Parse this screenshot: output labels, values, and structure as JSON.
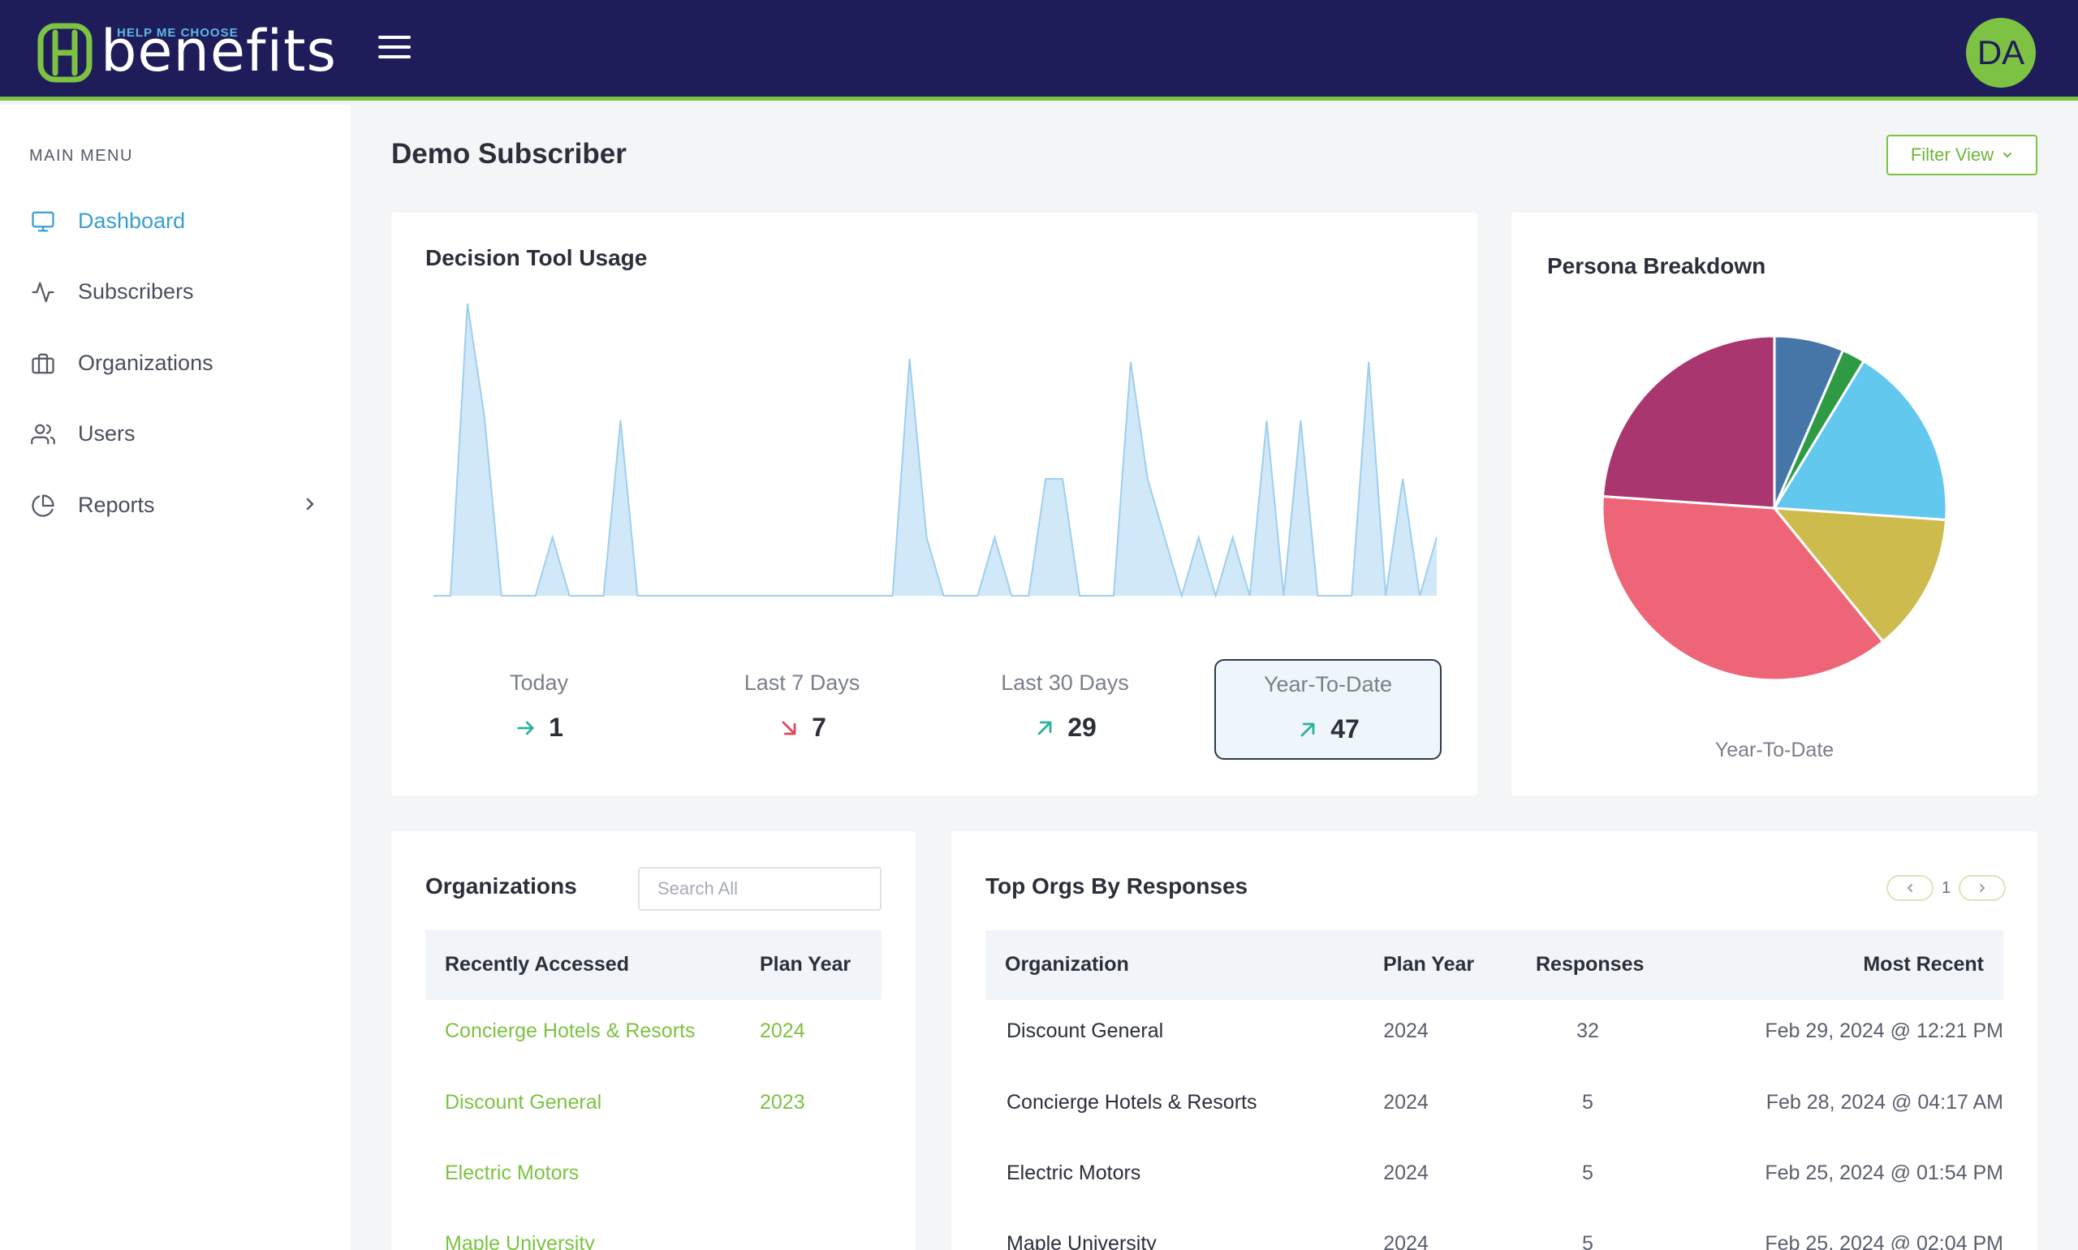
{
  "header": {
    "logo_tagline": "HELP ME CHOOSE",
    "logo_word": "benefits",
    "avatar_initials": "DA",
    "brand_color": "#1e1d5a",
    "accent_color": "#7dc242"
  },
  "sidebar": {
    "heading": "MAIN MENU",
    "items": [
      {
        "label": "Dashboard",
        "icon": "monitor-icon",
        "active": true
      },
      {
        "label": "Subscribers",
        "icon": "activity-icon"
      },
      {
        "label": "Organizations",
        "icon": "briefcase-icon"
      },
      {
        "label": "Users",
        "icon": "users-icon"
      },
      {
        "label": "Reports",
        "icon": "pie-chart-icon",
        "has_submenu": true
      }
    ]
  },
  "main": {
    "title": "Demo Subscriber",
    "filter_label": "Filter View"
  },
  "usage": {
    "title": "Decision Tool Usage",
    "stats": [
      {
        "label": "Today",
        "value": "1",
        "trend": "flat"
      },
      {
        "label": "Last 7 Days",
        "value": "7",
        "trend": "down"
      },
      {
        "label": "Last 30 Days",
        "value": "29",
        "trend": "up"
      },
      {
        "label": "Year-To-Date",
        "value": "47",
        "trend": "up",
        "selected": true
      }
    ]
  },
  "persona": {
    "title": "Persona Breakdown",
    "caption": "Year-To-Date"
  },
  "chart_data": [
    {
      "type": "area",
      "title": "Decision Tool Usage",
      "xlabel": "",
      "ylabel": "",
      "grid": false,
      "ylim": [
        0,
        9
      ],
      "x": [
        0,
        1,
        2,
        3,
        4,
        5,
        6,
        7,
        8,
        9,
        10,
        11,
        12,
        13,
        14,
        15,
        16,
        17,
        18,
        19,
        20,
        21,
        22,
        23,
        24,
        25,
        26,
        27,
        28,
        29,
        30,
        31,
        32,
        33,
        34,
        35,
        36,
        37,
        38,
        39,
        40,
        41,
        42,
        43,
        44,
        45,
        46,
        47,
        48,
        49,
        50,
        51,
        52,
        53,
        54,
        55,
        56,
        57,
        58,
        59
      ],
      "values": [
        0,
        0,
        9,
        5.5,
        0,
        0,
        0,
        1.8,
        0,
        0,
        0,
        5.4,
        0,
        0,
        0,
        0,
        0,
        0,
        0,
        0,
        0,
        0,
        0,
        0,
        0,
        0,
        0,
        0,
        7.3,
        1.8,
        0,
        0,
        0,
        1.8,
        0,
        0,
        3.6,
        3.6,
        0,
        0,
        0,
        7.2,
        3.6,
        1.8,
        0,
        1.8,
        0,
        1.8,
        0,
        5.4,
        0,
        5.4,
        0,
        0,
        0,
        7.2,
        0,
        3.6,
        0,
        1.8
      ],
      "color": "#9fcfee"
    },
    {
      "type": "pie",
      "title": "Persona Breakdown",
      "values": [
        3,
        1,
        8,
        6,
        17,
        11
      ],
      "colors": [
        "#4676a8",
        "#2e9a44",
        "#62c8ee",
        "#cdbb4e",
        "#ee6577",
        "#aa3670"
      ],
      "legend": "none"
    }
  ],
  "orgs": {
    "title": "Organizations",
    "search_placeholder": "Search All",
    "columns": [
      "Recently Accessed",
      "Plan Year"
    ],
    "rows": [
      {
        "name": "Concierge Hotels & Resorts",
        "year": "2024"
      },
      {
        "name": "Discount General",
        "year": "2023"
      },
      {
        "name": "Electric Motors",
        "year": ""
      },
      {
        "name": "Maple University",
        "year": ""
      }
    ]
  },
  "top_orgs": {
    "title": "Top Orgs By Responses",
    "page": "1",
    "columns": [
      "Organization",
      "Plan Year",
      "Responses",
      "Most Recent"
    ],
    "rows": [
      {
        "org": "Discount General",
        "year": "2024",
        "responses": "32",
        "recent": "Feb 29, 2024 @ 12:21 PM"
      },
      {
        "org": "Concierge Hotels & Resorts",
        "year": "2024",
        "responses": "5",
        "recent": "Feb 28, 2024 @ 04:17 AM"
      },
      {
        "org": "Electric Motors",
        "year": "2024",
        "responses": "5",
        "recent": "Feb 25, 2024 @ 01:54 PM"
      },
      {
        "org": "Maple University",
        "year": "2024",
        "responses": "5",
        "recent": "Feb 25, 2024 @ 02:04 PM"
      }
    ]
  }
}
